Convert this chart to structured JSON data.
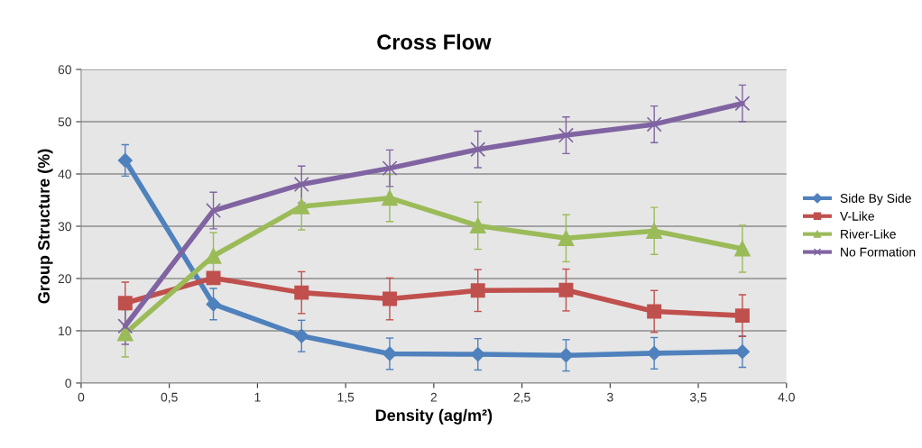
{
  "chart_data": {
    "type": "line",
    "title": "Cross Flow",
    "xlabel": "Density (ag/m²)",
    "ylabel": "Group Structure (%)",
    "x": [
      0.25,
      0.75,
      1.25,
      1.75,
      2.25,
      2.75,
      3.25,
      3.75
    ],
    "series": [
      {
        "name": "Side By Side",
        "color": "#4f81bd",
        "marker": "diamond",
        "values": [
          42.6,
          15.1,
          9.0,
          5.6,
          5.5,
          5.3,
          5.7,
          6.0
        ],
        "errors": [
          3,
          3,
          3,
          3,
          3,
          3,
          3,
          3
        ]
      },
      {
        "name": "V-Like",
        "color": "#c0504d",
        "marker": "square",
        "values": [
          15.3,
          20.1,
          17.3,
          16.1,
          17.7,
          17.8,
          13.7,
          12.9
        ],
        "errors": [
          4,
          null,
          4,
          4,
          4,
          4,
          4,
          4
        ]
      },
      {
        "name": "River-Like",
        "color": "#9bbb59",
        "marker": "triangle",
        "values": [
          9.5,
          24.3,
          33.8,
          35.4,
          30.1,
          27.7,
          29.1,
          25.7
        ],
        "errors": [
          4.5,
          4.5,
          4.5,
          4.5,
          4.5,
          4.5,
          4.5,
          4.5
        ]
      },
      {
        "name": "No Formation",
        "color": "#8064a2",
        "marker": "cross",
        "values": [
          10.9,
          33.0,
          38.0,
          41.1,
          44.7,
          47.4,
          49.5,
          53.5
        ],
        "errors": [
          3.5,
          3.5,
          3.5,
          3.5,
          3.5,
          3.5,
          3.5,
          3.5
        ]
      }
    ],
    "xlim": [
      0,
      4.0
    ],
    "xticks": [
      0,
      {
        "value": 0.5,
        "label": "0,5"
      },
      1,
      {
        "value": 1.5,
        "label": "1,5"
      },
      2,
      {
        "value": 2.5,
        "label": "2,5"
      },
      3,
      {
        "value": 3.5,
        "label": "3,5"
      },
      {
        "value": 4.0,
        "label": "4.0"
      }
    ],
    "ylim": [
      0,
      60
    ],
    "yticks": [
      0,
      10,
      20,
      30,
      40,
      50,
      60
    ],
    "grid": "y",
    "legend": "right",
    "line_style": "solid"
  }
}
